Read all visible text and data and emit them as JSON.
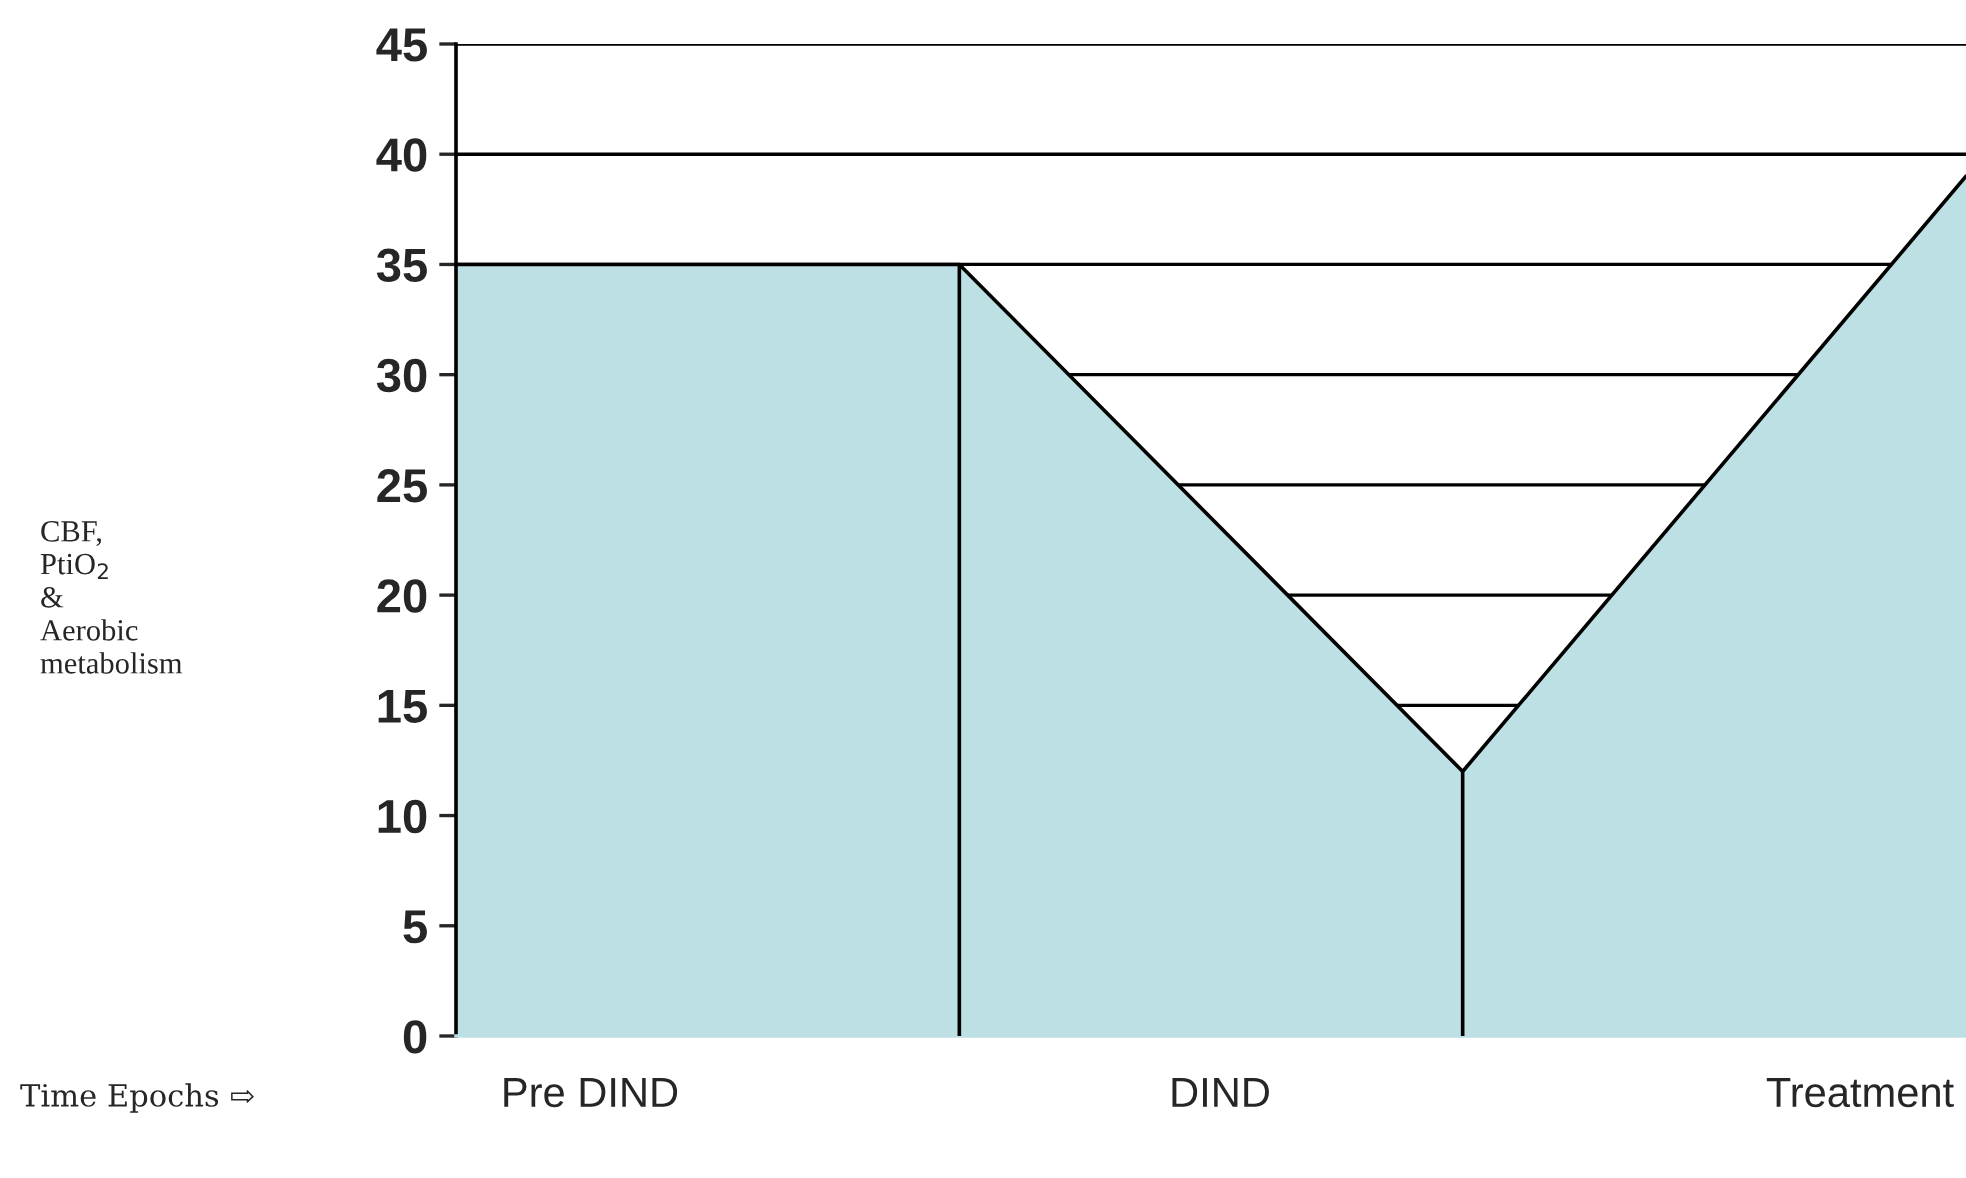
{
  "chart_data": {
    "type": "area",
    "categories": [
      null,
      null,
      null,
      null
    ],
    "series": [
      {
        "color": "#bce0e3",
        "values": [
          35,
          35,
          12,
          39
        ]
      }
    ],
    "ylim": [
      0,
      45
    ],
    "yticks": [
      0,
      5,
      10,
      15,
      20,
      25,
      30,
      35,
      40,
      45
    ],
    "grid": "y",
    "ylabel": "CBF,\nPtiO$_{2}$\n&\nAerobic\nmetabolism",
    "annotations": [
      "Pre DIND",
      "DIND",
      "Treatment",
      "Time Epochs ⇨"
    ]
  }
}
